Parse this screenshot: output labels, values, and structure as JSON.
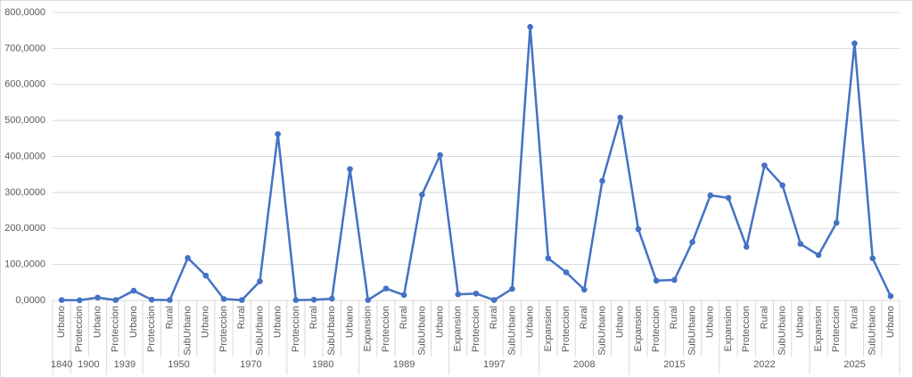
{
  "chart_data": {
    "type": "line",
    "groups": [
      {
        "name": "1840",
        "categories": [
          "Urbano"
        ]
      },
      {
        "name": "1900",
        "categories": [
          "Proteccion",
          "Urbano"
        ]
      },
      {
        "name": "1939",
        "categories": [
          "Proteccion",
          "Urbano"
        ]
      },
      {
        "name": "1950",
        "categories": [
          "Proteccion",
          "Rural",
          "SubUrbano",
          "Urbano"
        ]
      },
      {
        "name": "1970",
        "categories": [
          "Proteccion",
          "Rural",
          "SubUrbano",
          "Urbano"
        ]
      },
      {
        "name": "1980",
        "categories": [
          "Proteccion",
          "Rural",
          "SubUrbano",
          "Urbano"
        ]
      },
      {
        "name": "1989",
        "categories": [
          "Expansion",
          "Proteccion",
          "Rural",
          "SubUrbano",
          "Urbano"
        ]
      },
      {
        "name": "1997",
        "categories": [
          "Expansion",
          "Proteccion",
          "Rural",
          "SubUrbano",
          "Urbano"
        ]
      },
      {
        "name": "2008",
        "categories": [
          "Expansion",
          "Proteccion",
          "Rural",
          "SubUrbano",
          "Urbano"
        ]
      },
      {
        "name": "2015",
        "categories": [
          "Expansion",
          "Proteccion",
          "Rural",
          "SubUrbano",
          "Urbano"
        ]
      },
      {
        "name": "2022",
        "categories": [
          "Expansion",
          "Proteccion",
          "Rural",
          "SubUrbano",
          "Urbano"
        ]
      },
      {
        "name": "2025",
        "categories": [
          "Expansion",
          "Proteccion",
          "Rural",
          "SubUrbano",
          "Urbano"
        ]
      }
    ],
    "color": "#4472c4",
    "values": [
      1000,
      500,
      8000,
      1000,
      27000,
      2000,
      1000,
      118000,
      69000,
      4000,
      1000,
      53000,
      462000,
      1000,
      2000,
      5000,
      365000,
      1000,
      33000,
      15000,
      294000,
      404000,
      17000,
      19000,
      1000,
      32000,
      760000,
      117000,
      78000,
      30000,
      332000,
      508000,
      198000,
      55000,
      57000,
      162000,
      292000,
      285000,
      149000,
      375000,
      320000,
      157000,
      126000,
      216000,
      714000,
      117000,
      12000
    ],
    "ylim": [
      0,
      800000
    ],
    "yticks": [
      {
        "value": 0,
        "label": "0,0000"
      },
      {
        "value": 100000,
        "label": "100,0000"
      },
      {
        "value": 200000,
        "label": "200,0000"
      },
      {
        "value": 300000,
        "label": "300,0000"
      },
      {
        "value": 400000,
        "label": "400,0000"
      },
      {
        "value": 500000,
        "label": "500,0000"
      },
      {
        "value": 600000,
        "label": "600,0000"
      },
      {
        "value": 700000,
        "label": "700,0000"
      },
      {
        "value": 800000,
        "label": "800,0000"
      }
    ],
    "grid": true
  }
}
